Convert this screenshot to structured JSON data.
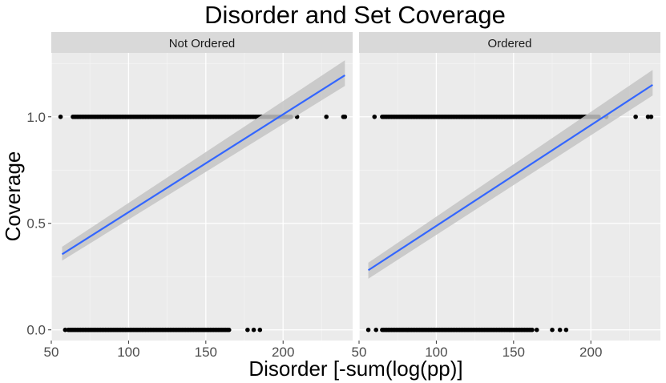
{
  "chart_data": {
    "type": "scatter",
    "title": "Disorder and Set Coverage",
    "xlabel": "Disorder [-sum(log(pp)]",
    "ylabel": "Coverage",
    "xlim": [
      50,
      245
    ],
    "ylim": [
      -0.05,
      1.3
    ],
    "x_ticks": [
      50,
      100,
      150,
      200
    ],
    "x_tick_labels": [
      "50",
      "100",
      "150",
      "200"
    ],
    "y_ticks": [
      0,
      0.5,
      1
    ],
    "y_tick_labels": [
      "0.0",
      "0.5",
      "1.0"
    ],
    "grid": true,
    "panels": [
      {
        "facet": "Not Ordered",
        "points_y1_range": [
          64,
          205
        ],
        "points_y1_extra": [
          56,
          209,
          228,
          239,
          240
        ],
        "points_y0_range": [
          61,
          165
        ],
        "points_y0_extra": [
          59,
          177,
          181,
          185
        ],
        "fit": {
          "x": [
            57,
            240
          ],
          "y": [
            0.355,
            1.195
          ]
        },
        "ci": {
          "lower": [
            0.325,
            1.145
          ],
          "upper": [
            0.39,
            1.265
          ]
        }
      },
      {
        "facet": "Ordered",
        "points_y1_range": [
          65,
          205
        ],
        "points_y1_extra": [
          60,
          210,
          229,
          237,
          239
        ],
        "points_y0_range": [
          65,
          162
        ],
        "points_y0_extra": [
          56,
          61,
          165,
          175,
          180,
          184
        ],
        "fit": {
          "x": [
            56,
            240
          ],
          "y": [
            0.28,
            1.15
          ]
        },
        "ci": {
          "lower": [
            0.24,
            1.1
          ],
          "upper": [
            0.315,
            1.22
          ]
        }
      }
    ],
    "colors": {
      "panel_bg": "#ebebeb",
      "grid_major": "#ffffff",
      "strip_bg": "#d9d9d9",
      "point": "#000000",
      "fit_line": "#3366ff",
      "ci_band": "#c4c4c4"
    }
  }
}
